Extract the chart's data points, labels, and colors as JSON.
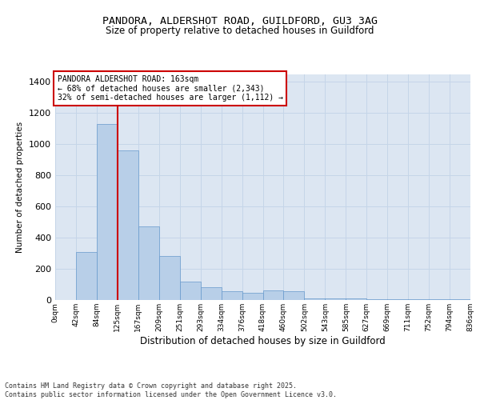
{
  "title_line1": "PANDORA, ALDERSHOT ROAD, GUILDFORD, GU3 3AG",
  "title_line2": "Size of property relative to detached houses in Guildford",
  "xlabel": "Distribution of detached houses by size in Guildford",
  "ylabel": "Number of detached properties",
  "bar_values": [
    2,
    310,
    1130,
    960,
    470,
    280,
    120,
    80,
    55,
    45,
    60,
    55,
    10,
    10,
    10,
    5,
    5,
    5,
    5,
    5
  ],
  "bin_labels": [
    "0sqm",
    "42sqm",
    "84sqm",
    "125sqm",
    "167sqm",
    "209sqm",
    "251sqm",
    "293sqm",
    "334sqm",
    "376sqm",
    "418sqm",
    "460sqm",
    "502sqm",
    "543sqm",
    "585sqm",
    "627sqm",
    "669sqm",
    "711sqm",
    "752sqm",
    "794sqm",
    "836sqm"
  ],
  "bar_color": "#b8cfe8",
  "bar_edge_color": "#6699cc",
  "grid_color": "#c5d5e8",
  "bg_color": "#dce6f2",
  "vline_color": "#cc0000",
  "vline_position": 2.5,
  "annotation_text": "PANDORA ALDERSHOT ROAD: 163sqm\n← 68% of detached houses are smaller (2,343)\n32% of semi-detached houses are larger (1,112) →",
  "annotation_box_facecolor": "#ffffff",
  "annotation_box_edgecolor": "#cc0000",
  "ylim": [
    0,
    1450
  ],
  "yticks": [
    0,
    200,
    400,
    600,
    800,
    1000,
    1200,
    1400
  ],
  "footer_text": "Contains HM Land Registry data © Crown copyright and database right 2025.\nContains public sector information licensed under the Open Government Licence v3.0.",
  "fig_bg": "#ffffff",
  "fig_width": 6.0,
  "fig_height": 5.0,
  "dpi": 100
}
